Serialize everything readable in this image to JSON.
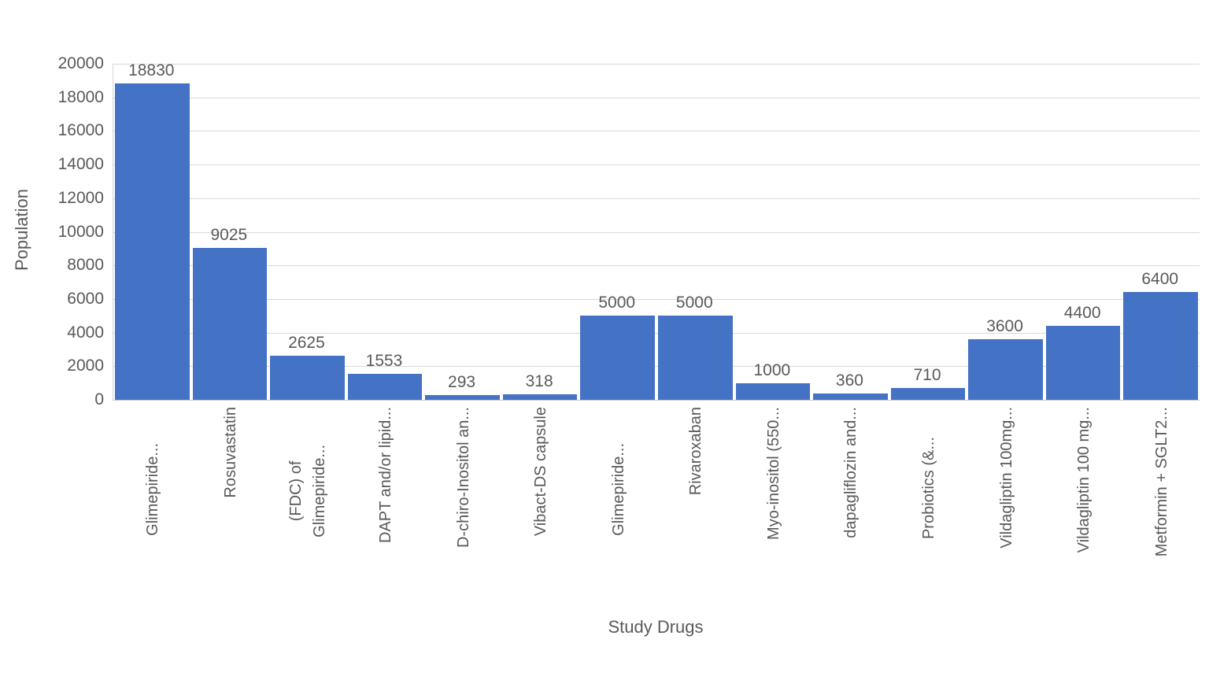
{
  "chart_data": {
    "type": "bar",
    "title": "",
    "xlabel": "Study Drugs",
    "ylabel": "Population",
    "ylim": [
      0,
      20000
    ],
    "ytick_interval": 2000,
    "ytick_labels": [
      "0",
      "2000",
      "4000",
      "6000",
      "8000",
      "10000",
      "12000",
      "14000",
      "16000",
      "18000",
      "20000"
    ],
    "categories": [
      "Glimepiride...",
      "Rosuvastatin",
      "(FDC) of\nGlimepiride...",
      "DAPT and/or lipid...",
      "D-chiro-Inositol an...",
      "Vibact-DS capsule",
      "Glimepiride...",
      "Rivaroxaban",
      "Myo-inositol (550...",
      "dapagliflozin and...",
      "Probiotics (&...",
      "Vildagliptin 100mg...",
      "Vildagliptin 100 mg...",
      "Metformin + SGLT2..."
    ],
    "values": [
      18830,
      9025,
      2625,
      1553,
      293,
      318,
      5000,
      5000,
      1000,
      360,
      710,
      3600,
      4400,
      6400
    ],
    "data_labels": [
      "18830",
      "9025",
      "2625",
      "1553",
      "293",
      "318",
      "5000",
      "5000",
      "1000",
      "360",
      "710",
      "3600",
      "4400",
      "6400"
    ],
    "grid": true,
    "legend": "none",
    "bar_color": "#4472C4",
    "gridline_color": "#D9D9D9",
    "axis_line_color": "#C8C8C8",
    "text_color": "#595959"
  }
}
